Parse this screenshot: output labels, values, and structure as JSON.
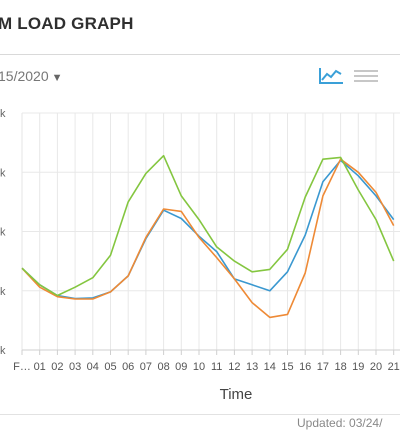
{
  "header": {
    "title": "M LOAD GRAPH"
  },
  "toolbar": {
    "date_value": "15/2020",
    "line_chart_icon": "line-chart-icon",
    "menu_icon": "hamburger-menu-icon",
    "accent_color": "#3aa0d8",
    "menu_color": "#c7c7c7"
  },
  "footer": {
    "updated_text": "Updated: 03/24/"
  },
  "chart_data": {
    "type": "line",
    "title": "",
    "xlabel": "Time",
    "ylabel": "",
    "grid": true,
    "categories": [
      "F…",
      "01",
      "02",
      "03",
      "04",
      "05",
      "06",
      "07",
      "08",
      "09",
      "10",
      "11",
      "12",
      "13",
      "14",
      "15",
      "16",
      "17",
      "18",
      "19",
      "20",
      "21"
    ],
    "ylim": [
      0,
      4
    ],
    "y_ticks": [
      0,
      1,
      2,
      3,
      4
    ],
    "y_tick_labels": [
      "k",
      "k",
      "k",
      "k",
      "k"
    ],
    "series": [
      {
        "color": "#3a98d0",
        "values": [
          1.38,
          1.1,
          0.92,
          0.87,
          0.88,
          0.98,
          1.25,
          1.88,
          2.36,
          2.22,
          1.92,
          1.66,
          1.2,
          1.1,
          1.0,
          1.32,
          1.94,
          2.84,
          3.2,
          2.94,
          2.6,
          2.2
        ]
      },
      {
        "color": "#ee8a36",
        "values": [
          1.38,
          1.06,
          0.9,
          0.86,
          0.86,
          0.98,
          1.25,
          1.9,
          2.38,
          2.34,
          1.9,
          1.56,
          1.2,
          0.8,
          0.55,
          0.6,
          1.3,
          2.6,
          3.22,
          3.0,
          2.66,
          2.1
        ]
      },
      {
        "color": "#84c640",
        "values": [
          1.38,
          1.1,
          0.92,
          1.06,
          1.22,
          1.6,
          2.5,
          2.98,
          3.28,
          2.6,
          2.2,
          1.74,
          1.5,
          1.32,
          1.36,
          1.7,
          2.58,
          3.22,
          3.25,
          2.7,
          2.2,
          1.5
        ]
      }
    ]
  }
}
